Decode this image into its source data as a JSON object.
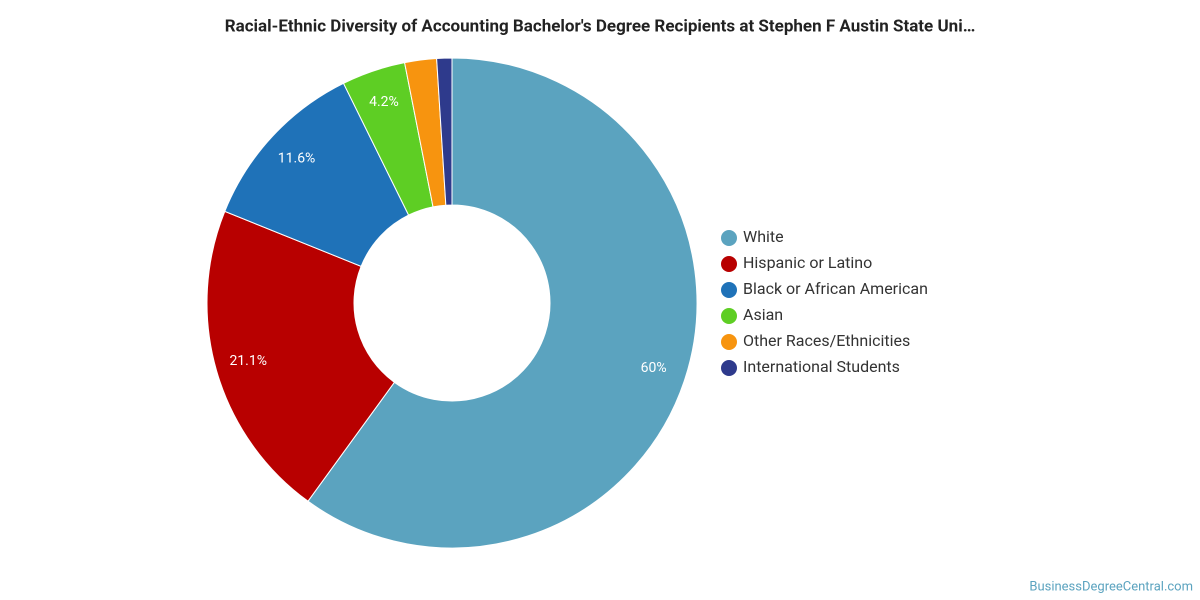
{
  "chart_data": {
    "type": "donut",
    "title": "Racial-Ethnic Diversity of Accounting Bachelor's Degree Recipients at Stephen F Austin State Uni…",
    "categories": [
      "White",
      "Hispanic or Latino",
      "Black or African American",
      "Asian",
      "Other Races/Ethnicities",
      "International Students"
    ],
    "values": [
      60,
      21.1,
      11.6,
      4.2,
      2.1,
      1.0
    ],
    "value_labels": [
      "60%",
      "21.1%",
      "11.6%",
      "4.2%",
      null,
      null
    ],
    "colors": [
      "#5ba3bf",
      "#b80000",
      "#1f72b8",
      "#5ece24",
      "#f7940f",
      "#2e3a8c"
    ],
    "legend": "right",
    "source": "BusinessDegreeCentral.com"
  }
}
